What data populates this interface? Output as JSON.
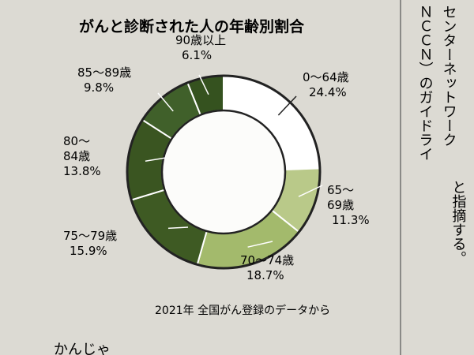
{
  "chart_data": {
    "type": "pie",
    "title": "がんと診断された人の年齢別割合",
    "source": "2021年 全国がん登録のデータから",
    "slices": [
      {
        "label_lines": [
          "0～64歳"
        ],
        "value_text": "24.4%",
        "value": 24.4,
        "color": "#ffffff"
      },
      {
        "label_lines": [
          "65～",
          "69歳"
        ],
        "value_text": "11.3%",
        "value": 11.3,
        "color": "#b9c989"
      },
      {
        "label_lines": [
          "70～74歳"
        ],
        "value_text": "18.7%",
        "value": 18.7,
        "color": "#a3ba6c"
      },
      {
        "label_lines": [
          "75～79歳"
        ],
        "value_text": "15.9%",
        "value": 15.9,
        "color": "#3e5a23"
      },
      {
        "label_lines": [
          "80～",
          "84歳"
        ],
        "value_text": "13.8%",
        "value": 13.8,
        "color": "#3a5521"
      },
      {
        "label_lines": [
          "85～89歳"
        ],
        "value_text": "9.8%",
        "value": 9.8,
        "color": "#40602a"
      },
      {
        "label_lines": [
          "90歳以上"
        ],
        "value_text": "6.1%",
        "value": 6.1,
        "color": "#35521f"
      }
    ]
  },
  "page": {
    "article_column": [
      "センターネットワーク",
      "ＮＣＣＮ）のガイドライ",
      "と指摘する。"
    ],
    "bottom_text": "かんじゃ"
  }
}
